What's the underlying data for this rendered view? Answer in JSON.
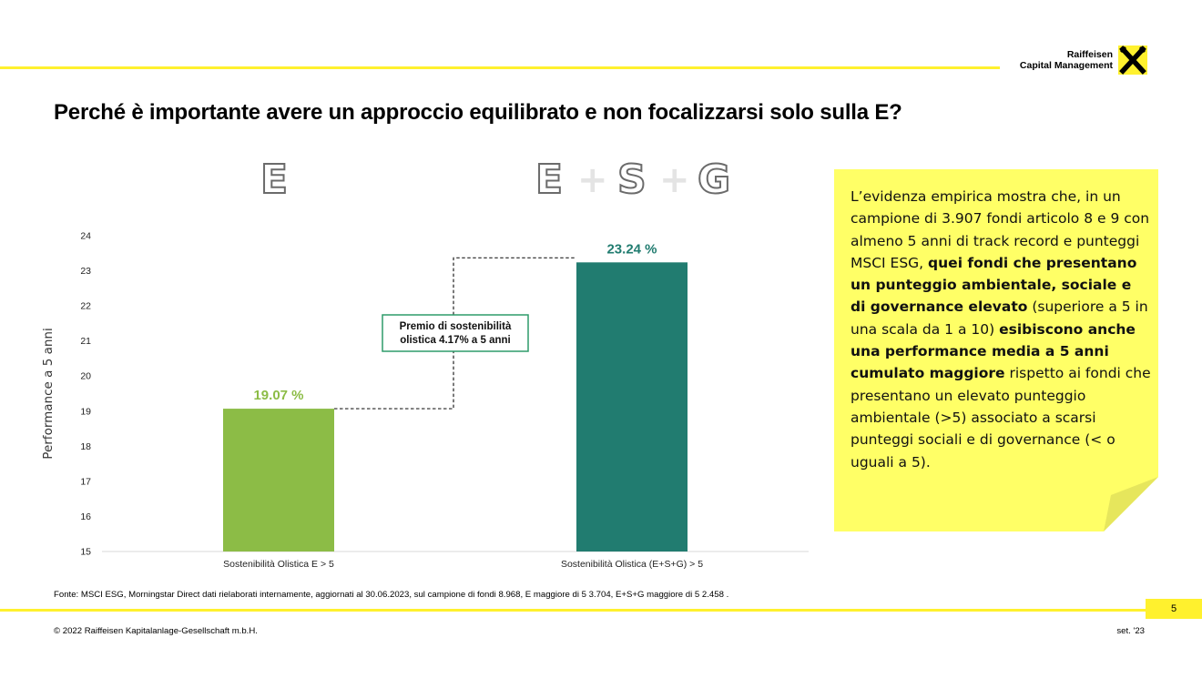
{
  "slide": {
    "title": "Perché è importante avere un approccio equilibrato e non focalizzarsi solo sulla E?",
    "logo_line1": "Raiffeisen",
    "logo_line2": "Capital Management",
    "heading_left": "E",
    "heading_right": {
      "e": "E",
      "plus1": "+",
      "s": "S",
      "plus2": "+",
      "g": "G"
    },
    "premium_label_line1": "Premio di sostenibilità",
    "premium_label_line2": "olistica 4.17% a 5 anni",
    "source": "Fonte: MSCI ESG, Morningstar Direct dati rielaborati internamente, aggiornati al 30.06.2023, sul campione di fondi 8.968, E maggiore di 5 3.704, E+S+G maggiore di 5 2.458 .",
    "copyright": "© 2022 Raiffeisen Kapitalanlage-Gesellschaft m.b.H.",
    "date": "set. '23",
    "page_number": "5"
  },
  "note": {
    "p1": "L’evidenza empirica mostra che, in un campione di 3.907 fondi articolo 8 e 9 con almeno 5 anni di track record e punteggi MSCI ESG,",
    "b1": "quei fondi che presentano un punteggio ambientale, sociale e di governance elevato",
    "p2": "(superiore a 5 in una scala da 1 a 10)",
    "b2": "esibiscono anche una performance media a 5 anni cumulato maggiore",
    "p3": "rispetto ai fondi che presentano un elevato punteggio ambientale (>5) associato a scarsi punteggi sociali e di governance (< o uguali a 5)."
  },
  "colors": {
    "accent_yellow": "#fff12e",
    "note_yellow": "#ffff66",
    "bar_green": "#8cbc46",
    "bar_teal": "#217c70",
    "label_green": "#8cbc46",
    "label_teal": "#217c70",
    "premium_border": "#2e9b6a"
  },
  "chart_data": {
    "type": "bar",
    "categories": [
      "Sostenibilità Olistica E > 5",
      "Sostenibilità Olistica (E+S+G) > 5"
    ],
    "values": [
      19.07,
      23.24
    ],
    "data_labels": [
      "19.07 %",
      "23.24 %"
    ],
    "ylabel": "Performance a 5 anni",
    "ylim": [
      15,
      24
    ],
    "yticks": [
      15,
      16,
      17,
      18,
      19,
      20,
      21,
      22,
      23,
      24
    ],
    "grid": false,
    "legend": "none"
  }
}
